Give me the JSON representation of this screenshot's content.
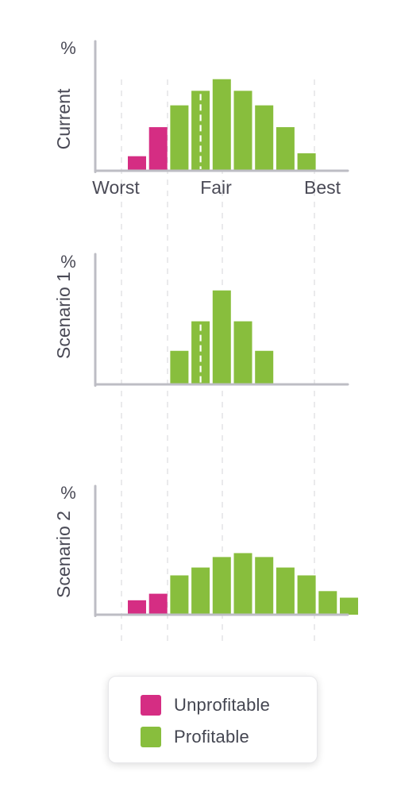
{
  "colors": {
    "unprofitable": "#d52d83",
    "profitable": "#88be3d",
    "axis": "#bdbdc4",
    "text": "#4a4a56",
    "guide": "#dcdce0",
    "marker": "#ffffff"
  },
  "legend": {
    "items": [
      {
        "label": "Unprofitable",
        "color_key": "unprofitable"
      },
      {
        "label": "Profitable",
        "color_key": "profitable"
      }
    ]
  },
  "chart_data": [
    {
      "type": "bar",
      "ylabel": "Current",
      "yunit": "%",
      "x_ticks": [
        "Worst",
        "Fair",
        "Best"
      ],
      "categories": [
        1,
        2,
        3,
        4,
        5,
        6,
        7,
        8,
        9
      ],
      "values": [
        1,
        3,
        4.5,
        5.5,
        6.3,
        5.5,
        4.5,
        3,
        1.2
      ],
      "status": [
        "unprofitable",
        "unprofitable",
        "profitable",
        "profitable",
        "profitable",
        "profitable",
        "profitable",
        "profitable",
        "profitable"
      ],
      "fair_marker_category": 4
    },
    {
      "type": "bar",
      "ylabel": "Scenario 1",
      "yunit": "%",
      "categories": [
        3,
        4,
        5,
        6,
        7
      ],
      "values": [
        2.5,
        4.7,
        7,
        4.7,
        2.5
      ],
      "status": [
        "profitable",
        "profitable",
        "profitable",
        "profitable",
        "profitable"
      ],
      "fair_marker_category": 4
    },
    {
      "type": "bar",
      "ylabel": "Scenario 2",
      "yunit": "%",
      "categories": [
        1,
        2,
        3,
        4,
        5,
        6,
        7,
        8,
        9,
        10,
        11
      ],
      "values": [
        1.1,
        1.6,
        3,
        3.6,
        4.4,
        4.7,
        4.4,
        3.6,
        3,
        1.8,
        1.3
      ],
      "status": [
        "unprofitable",
        "unprofitable",
        "profitable",
        "profitable",
        "profitable",
        "profitable",
        "profitable",
        "profitable",
        "profitable",
        "profitable",
        "profitable"
      ]
    }
  ]
}
